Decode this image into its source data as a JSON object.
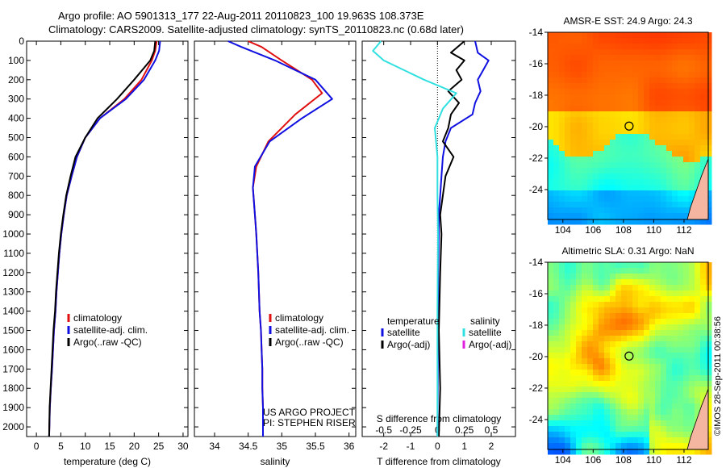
{
  "header": {
    "line1": "Argo profile: AO 5901313_177 22-Aug-2011 20110823_100 19.963S 108.373E",
    "line2": "Climatology: CARS2009. Satellite-adjusted climatology: synTS_20110823.nc (0.68d later)"
  },
  "footer": {
    "credit": "US ARGO PROJECT",
    "pi": "PI: STEPHEN RISER",
    "stamp": "©IMOS 28-Sep-2011 00:38:56"
  },
  "colors": {
    "climatology": "#e01010",
    "satellite": "#1010e0",
    "argo": "#000000",
    "satellite_salinity": "#30e0e0",
    "argo_salinity": "#e020e0"
  },
  "chart_data": [
    {
      "type": "line",
      "panel": "temperature",
      "xlabel": "temperature (deg C)",
      "xlim": [
        -2,
        31
      ],
      "xticks": [
        0,
        5,
        10,
        15,
        20,
        25,
        30
      ],
      "ylim": [
        2050,
        0
      ],
      "yticks": [
        0,
        100,
        200,
        300,
        400,
        500,
        600,
        700,
        800,
        900,
        1000,
        1100,
        1200,
        1300,
        1400,
        1500,
        1600,
        1700,
        1800,
        1900,
        2000
      ],
      "legend": [
        "climatology",
        "satellite-adj. clim.",
        "Argo(..raw -QC)"
      ],
      "series": [
        {
          "name": "climatology",
          "color": "#e01010",
          "x": [
            24.6,
            24.3,
            23.6,
            21.5,
            18.0,
            13.0,
            10.0,
            8.3,
            7.2,
            6.2,
            5.6,
            5.1,
            4.7,
            4.4,
            4.1,
            3.9,
            3.6,
            3.4,
            3.2,
            2.95,
            2.75,
            2.6
          ],
          "y": [
            0,
            50,
            100,
            200,
            300,
            400,
            500,
            600,
            700,
            800,
            900,
            1000,
            1100,
            1200,
            1300,
            1400,
            1500,
            1600,
            1700,
            1800,
            1900,
            2050
          ]
        },
        {
          "name": "satellite-adj. clim.",
          "color": "#1010e0",
          "x": [
            25.3,
            25.1,
            24.3,
            22.0,
            18.3,
            13.0,
            10.0,
            8.3,
            7.2,
            6.2,
            5.6,
            5.1,
            4.7,
            4.4,
            4.1,
            3.9,
            3.6,
            3.4,
            3.2,
            2.95,
            2.75,
            2.6
          ],
          "y": [
            0,
            50,
            100,
            200,
            300,
            400,
            500,
            600,
            700,
            800,
            900,
            1000,
            1100,
            1200,
            1300,
            1400,
            1500,
            1600,
            1700,
            1800,
            1900,
            2050
          ]
        },
        {
          "name": "Argo(..raw -QC)",
          "color": "#000000",
          "x": [
            24.3,
            24.1,
            23.3,
            20.0,
            16.5,
            12.5,
            10.0,
            8.0,
            7.0,
            6.1,
            5.5,
            5.0,
            4.6,
            4.3,
            4.0,
            3.8,
            3.5,
            3.3,
            3.1,
            2.9,
            2.7,
            2.6
          ],
          "y": [
            0,
            50,
            100,
            200,
            300,
            400,
            500,
            600,
            700,
            800,
            900,
            1000,
            1100,
            1200,
            1300,
            1400,
            1500,
            1600,
            1700,
            1800,
            1900,
            2050
          ]
        }
      ]
    },
    {
      "type": "line",
      "panel": "salinity",
      "xlabel": "salinity",
      "xlim": [
        33.7,
        36.1
      ],
      "xticks": [
        34,
        34.5,
        35,
        35.5,
        36
      ],
      "ylim": [
        2050,
        0
      ],
      "legend": [
        "climatology",
        "satellite-adj. clim.",
        "Argo(..raw -QC)"
      ],
      "series": [
        {
          "name": "climatology",
          "color": "#e01010",
          "x": [
            34.5,
            34.7,
            35.0,
            35.45,
            35.6,
            35.2,
            34.8,
            34.62,
            34.57,
            34.6,
            34.62,
            34.65,
            34.67,
            34.69,
            34.7,
            34.71,
            34.71,
            34.72,
            34.72
          ],
          "y": [
            0,
            30,
            100,
            200,
            270,
            380,
            520,
            650,
            760,
            900,
            1000,
            1200,
            1400,
            1500,
            1600,
            1700,
            1800,
            1900,
            2050
          ]
        },
        {
          "name": "satellite-adj. clim.",
          "color": "#1010e0",
          "x": [
            34.2,
            34.4,
            34.9,
            35.5,
            35.75,
            35.3,
            34.82,
            34.6,
            34.57,
            34.6,
            34.62,
            34.65,
            34.67,
            34.69,
            34.7,
            34.71,
            34.71,
            34.72,
            34.72
          ],
          "y": [
            0,
            30,
            100,
            200,
            300,
            400,
            520,
            650,
            760,
            900,
            1000,
            1200,
            1400,
            1500,
            1600,
            1700,
            1800,
            1900,
            2050
          ]
        }
      ]
    },
    {
      "type": "line",
      "panel": "difference",
      "xlabel": "T difference from climatology",
      "xlabel_top": "S difference from climatology",
      "xlim": [
        -2.8,
        2.9
      ],
      "xticks": [
        -2,
        -1,
        0,
        1,
        2
      ],
      "xticks_top_values": [
        -0.5,
        -0.25,
        0,
        0.25,
        0.5
      ],
      "xticks_top_labels": [
        "-0.5",
        "-0.25",
        "0",
        "0.25",
        "0.5"
      ],
      "ylim": [
        2050,
        0
      ],
      "legend": {
        "temperature": [
          "satellite",
          "Argo(-adj)"
        ],
        "salinity": [
          "satellite",
          "Argo(-adj)"
        ]
      },
      "series": [
        {
          "name": "satellite",
          "quantity": "temperature",
          "color": "#1010e0",
          "x": [
            1.4,
            1.5,
            1.9,
            1.7,
            1.5,
            1.6,
            1.4,
            1.3,
            0.5,
            0.3,
            0.2,
            0.15,
            0.1,
            0.05,
            0.05,
            0.03,
            0.02,
            0.01,
            0.0
          ],
          "y": [
            0,
            60,
            100,
            150,
            200,
            260,
            320,
            380,
            450,
            520,
            600,
            700,
            800,
            900,
            1000,
            1200,
            1500,
            1800,
            2050
          ]
        },
        {
          "name": "Argo(-adj)",
          "quantity": "temperature",
          "color": "#000000",
          "x": [
            1.0,
            0.5,
            1.0,
            0.7,
            0.9,
            0.4,
            0.8,
            0.5,
            0.4,
            0.2,
            0.6,
            0.3,
            0.2,
            0.1,
            0.15,
            0.1,
            0.05,
            0.1,
            0.05
          ],
          "y": [
            0,
            60,
            100,
            150,
            200,
            260,
            320,
            380,
            450,
            520,
            600,
            700,
            800,
            900,
            1000,
            1200,
            1500,
            1800,
            2050
          ]
        },
        {
          "name": "satellite",
          "quantity": "salinity",
          "color": "#30e0e0",
          "x": [
            -2.1,
            -2.4,
            -2.0,
            -0.5,
            0.7,
            0.2,
            -0.1,
            0.0,
            0.0,
            0.02,
            0.0,
            0.0,
            0.0
          ],
          "y": [
            0,
            50,
            100,
            200,
            270,
            350,
            450,
            600,
            800,
            1000,
            1400,
            1800,
            2050
          ]
        }
      ]
    },
    {
      "type": "heatmap",
      "panel": "map-sst",
      "title": "AMSR-E SST: 24.9 Argo: 24.3",
      "xlim": [
        103,
        113.6
      ],
      "ylim": [
        -25.9,
        -14
      ],
      "xticks": [
        104,
        106,
        108,
        110,
        112
      ],
      "yticks": [
        -14,
        -16,
        -18,
        -20,
        -22,
        -24
      ],
      "marker": {
        "lon": 108.373,
        "lat": -19.963
      }
    },
    {
      "type": "heatmap",
      "panel": "map-sla",
      "title": "Altimetric SLA: 0.31 Argo: NaN",
      "xlim": [
        103,
        113.6
      ],
      "ylim": [
        -25.9,
        -14
      ],
      "xticks": [
        104,
        106,
        108,
        110,
        112
      ],
      "yticks": [
        -14,
        -16,
        -18,
        -20,
        -22,
        -24
      ],
      "marker": {
        "lon": 108.373,
        "lat": -19.963
      }
    }
  ]
}
